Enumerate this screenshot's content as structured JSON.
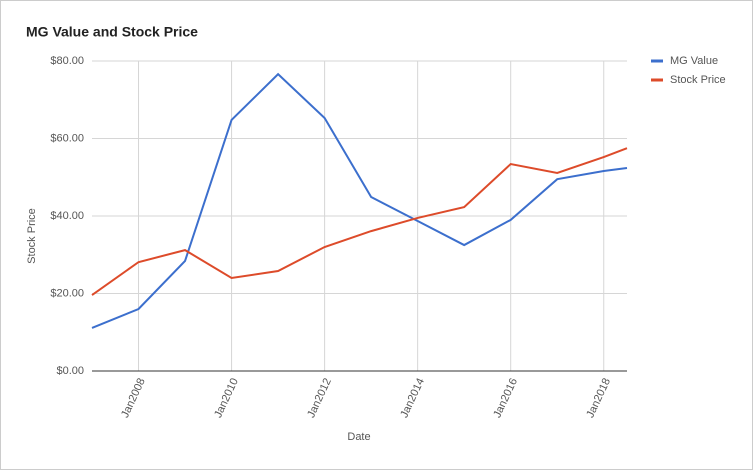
{
  "chart_data": {
    "type": "line",
    "title": "MG Value and Stock Price",
    "x_label": "Date",
    "y_label": "Stock Price",
    "x": [
      2007,
      2008,
      2009,
      2010,
      2011,
      2012,
      2013,
      2014,
      2015,
      2016,
      2017,
      2018,
      2018.5
    ],
    "series": [
      {
        "name": "MG Value",
        "color": "#3c6fcd",
        "values": [
          11.1,
          16.0,
          28.4,
          64.8,
          76.6,
          65.3,
          44.9,
          38.7,
          32.5,
          39.0,
          49.5,
          51.6,
          52.4
        ]
      },
      {
        "name": "Stock Price",
        "color": "#dd4b2a",
        "values": [
          19.6,
          28.1,
          31.2,
          24.0,
          25.8,
          32.0,
          36.1,
          39.5,
          42.3,
          53.4,
          51.1,
          55.2,
          57.5
        ]
      }
    ],
    "xlim": [
      2007,
      2018.5
    ],
    "xticks": [
      {
        "value": 2008,
        "label": "Jan2008"
      },
      {
        "value": 2010,
        "label": "Jan2010"
      },
      {
        "value": 2012,
        "label": "Jan2012"
      },
      {
        "value": 2014,
        "label": "Jan2014"
      },
      {
        "value": 2016,
        "label": "Jan2016"
      },
      {
        "value": 2018,
        "label": "Jan2018"
      }
    ],
    "ylim": [
      0,
      80
    ],
    "yticks": [
      {
        "value": 0,
        "label": "$0.00"
      },
      {
        "value": 20,
        "label": "$20.00"
      },
      {
        "value": 40,
        "label": "$40.00"
      },
      {
        "value": 60,
        "label": "$60.00"
      },
      {
        "value": 80,
        "label": "$80.00"
      }
    ],
    "grid": true,
    "legend": "right"
  }
}
